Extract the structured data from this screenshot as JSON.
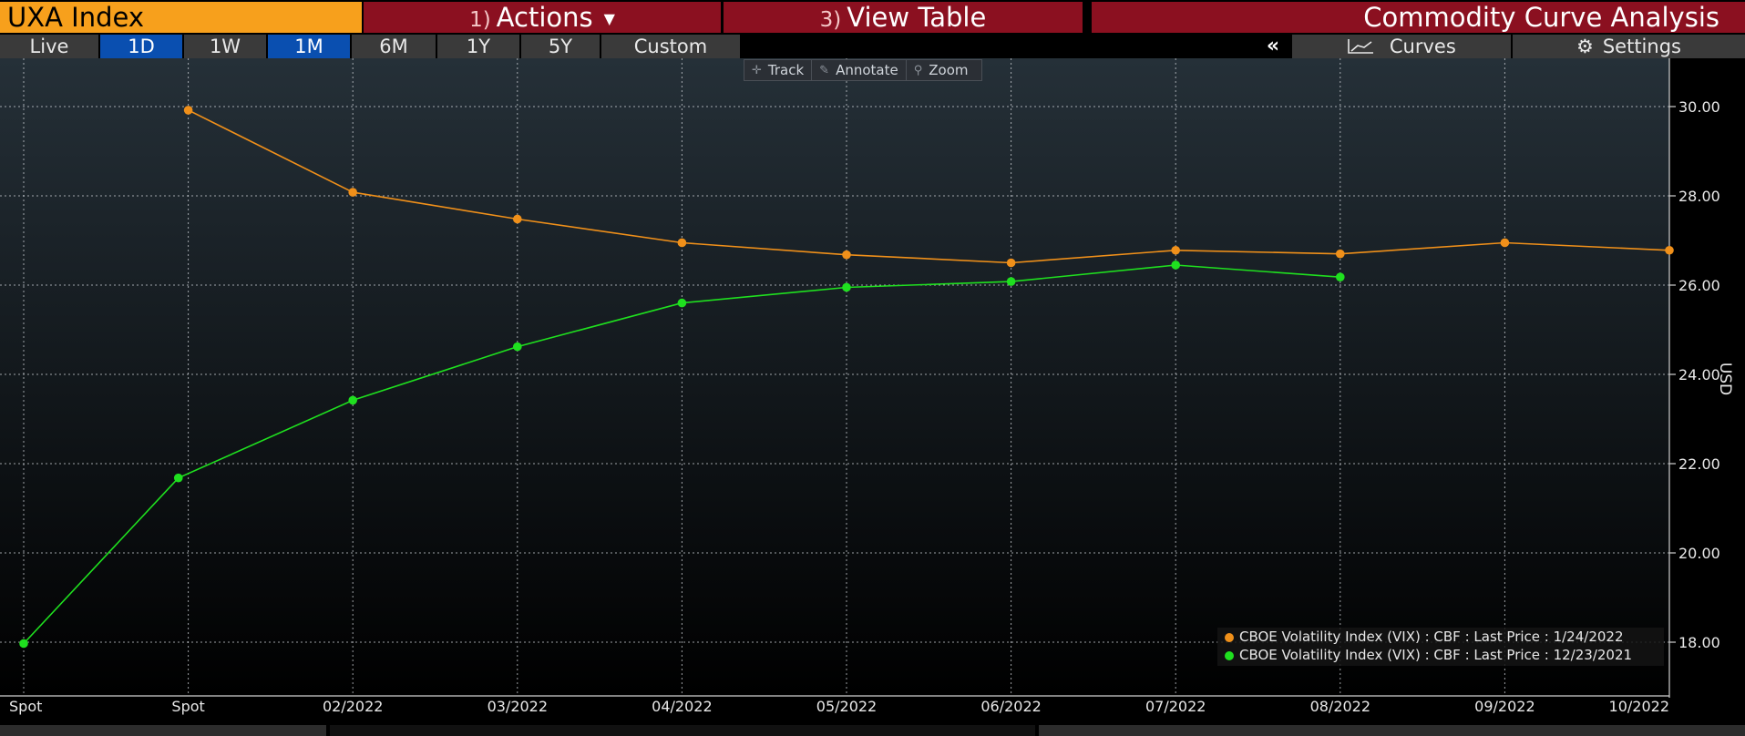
{
  "header": {
    "ticker": "UXA Index",
    "actions": {
      "num": "1)",
      "label": "Actions"
    },
    "view_table": {
      "num": "3)",
      "label": "View Table"
    },
    "title": "Commodity Curve Analysis"
  },
  "ranges": [
    {
      "label": "Live",
      "active": false
    },
    {
      "label": "1D",
      "active": true
    },
    {
      "label": "1W",
      "active": false
    },
    {
      "label": "1M",
      "active": true
    },
    {
      "label": "6M",
      "active": false
    },
    {
      "label": "1Y",
      "active": false
    },
    {
      "label": "5Y",
      "active": false
    },
    {
      "label": "Custom",
      "active": false
    }
  ],
  "toolbar": {
    "collapse": "«",
    "curves": "Curves",
    "settings": "Settings"
  },
  "floating_tools": {
    "track": "Track",
    "annotate": "Annotate",
    "zoom": "Zoom"
  },
  "colors": {
    "orange": "#f0901a",
    "green": "#1fe01f",
    "grid": "#cfd3d8"
  },
  "chart_data": {
    "type": "line",
    "categories": [
      "Spot",
      "Spot",
      "02/2022",
      "03/2022",
      "04/2022",
      "05/2022",
      "06/2022",
      "07/2022",
      "08/2022",
      "09/2022",
      "10/2022"
    ],
    "ylabel": "USD",
    "ylim": [
      16.8,
      31.0
    ],
    "yticks": [
      "18.00",
      "20.00",
      "22.00",
      "24.00",
      "26.00",
      "28.00",
      "30.00"
    ],
    "grid": true,
    "legend_position": "bottom-right",
    "series": [
      {
        "name": "CBOE Volatility Index (VIX) : CBF : Last Price : 1/24/2022",
        "color": "#f0901a",
        "points": [
          {
            "x": 1.0,
            "y": 29.92
          },
          {
            "x": 2.0,
            "y": 28.08
          },
          {
            "x": 3.0,
            "y": 27.48
          },
          {
            "x": 4.0,
            "y": 26.95
          },
          {
            "x": 5.0,
            "y": 26.68
          },
          {
            "x": 6.0,
            "y": 26.5
          },
          {
            "x": 7.0,
            "y": 26.78
          },
          {
            "x": 8.0,
            "y": 26.7
          },
          {
            "x": 9.0,
            "y": 26.95
          },
          {
            "x": 10.0,
            "y": 26.78
          }
        ]
      },
      {
        "name": "CBOE Volatility Index (VIX) : CBF : Last Price : 12/23/2021",
        "color": "#1fe01f",
        "points": [
          {
            "x": 0.0,
            "y": 17.97
          },
          {
            "x": 0.94,
            "y": 21.68
          },
          {
            "x": 2.0,
            "y": 23.42
          },
          {
            "x": 3.0,
            "y": 24.62
          },
          {
            "x": 4.0,
            "y": 25.6
          },
          {
            "x": 5.0,
            "y": 25.95
          },
          {
            "x": 6.0,
            "y": 26.08
          },
          {
            "x": 7.0,
            "y": 26.45
          },
          {
            "x": 8.0,
            "y": 26.18
          }
        ]
      }
    ]
  }
}
